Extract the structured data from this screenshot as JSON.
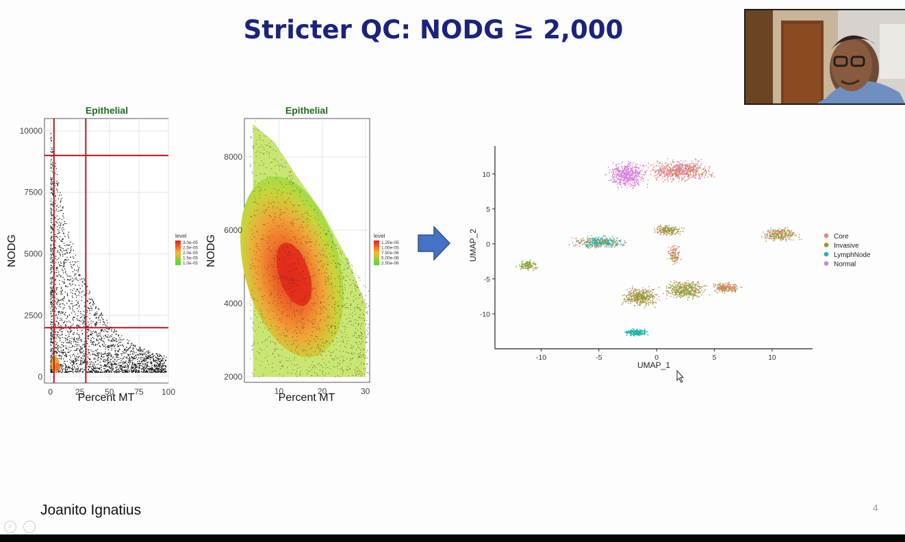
{
  "slide": {
    "title": "Stricter QC: NODG ≥ 2,000",
    "author": "Joanito Ignatius",
    "page_number": "4",
    "arrow_color": "#4472c4"
  },
  "chart_data": [
    {
      "type": "scatter",
      "title": "Epithelial",
      "xlabel": "Percent MT",
      "ylabel": "NODG",
      "xlim": [
        -5,
        100
      ],
      "ylim": [
        -250,
        10500
      ],
      "x_ticks": [
        "0",
        "25",
        "50",
        "75",
        "100"
      ],
      "y_ticks": [
        "0",
        "2500",
        "5000",
        "7500",
        "10000"
      ],
      "thresholds": {
        "vertical": [
          3,
          30
        ],
        "horizontal": [
          2000,
          9000
        ],
        "color": "#c0121b"
      },
      "legend": {
        "title": "level",
        "entries": [
          "3.0e-05",
          "2.5e-05",
          "2.0e-05",
          "1.5e-05",
          "1.0e-05"
        ],
        "placement": "right"
      },
      "grid": true
    },
    {
      "type": "scatter",
      "title": "Epithelial",
      "xlabel": "Percent MT",
      "ylabel": "NODG",
      "xlim": [
        2,
        31
      ],
      "ylim": [
        1850,
        9050
      ],
      "x_ticks": [
        "10",
        "20",
        "30"
      ],
      "y_ticks": [
        "2000",
        "4000",
        "6000",
        "8000"
      ],
      "legend": {
        "title": "level",
        "entries": [
          "1.25e-05",
          "1.00e-05",
          "7.50e-06",
          "5.00e-06",
          "2.50e-06"
        ],
        "placement": "right"
      },
      "grid": true
    },
    {
      "type": "scatter",
      "xlabel": "UMAP_1",
      "ylabel": "UMAP_2",
      "xlim": [
        -14,
        13.5
      ],
      "ylim": [
        -15,
        14
      ],
      "x_ticks": [
        "-10",
        "-5",
        "0",
        "5",
        "10"
      ],
      "y_ticks": [
        "-10",
        "-5",
        "0",
        "5",
        "10"
      ],
      "series": [
        {
          "name": "Core",
          "color": "#e8837c"
        },
        {
          "name": "Invasive",
          "color": "#7ca624"
        },
        {
          "name": "LymphNode",
          "color": "#1fb7ad"
        },
        {
          "name": "Normal",
          "color": "#d57ee8"
        }
      ],
      "legend": {
        "placement": "right"
      },
      "grid": false
    }
  ],
  "webcam": {
    "label": "presenter video"
  }
}
